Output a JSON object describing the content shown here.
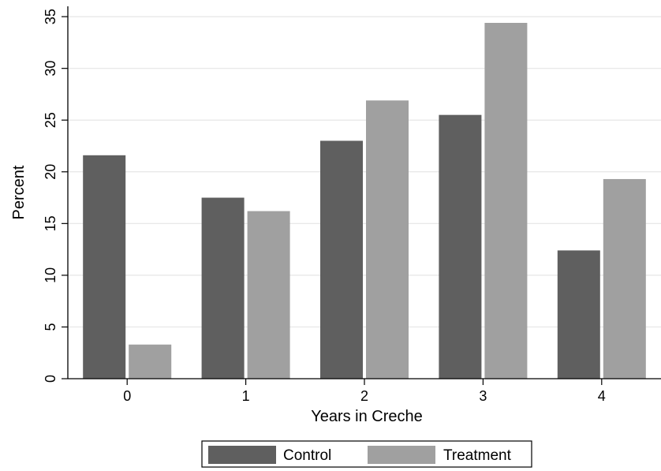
{
  "chart_data": {
    "type": "bar",
    "title": "",
    "xlabel": "Years in Creche",
    "ylabel": "Percent",
    "categories": [
      "0",
      "1",
      "2",
      "3",
      "4"
    ],
    "series": [
      {
        "name": "Control",
        "color": "#5f5f5f",
        "values": [
          21.6,
          17.5,
          23.0,
          25.5,
          12.4
        ]
      },
      {
        "name": "Treatment",
        "color": "#a0a0a0",
        "values": [
          3.3,
          16.2,
          26.9,
          34.4,
          19.3
        ]
      }
    ],
    "ylim": [
      0,
      36
    ],
    "yticks": [
      "0",
      "5",
      "10",
      "15",
      "20",
      "25",
      "30",
      "35"
    ],
    "grid": true,
    "legend_position": "bottom"
  }
}
